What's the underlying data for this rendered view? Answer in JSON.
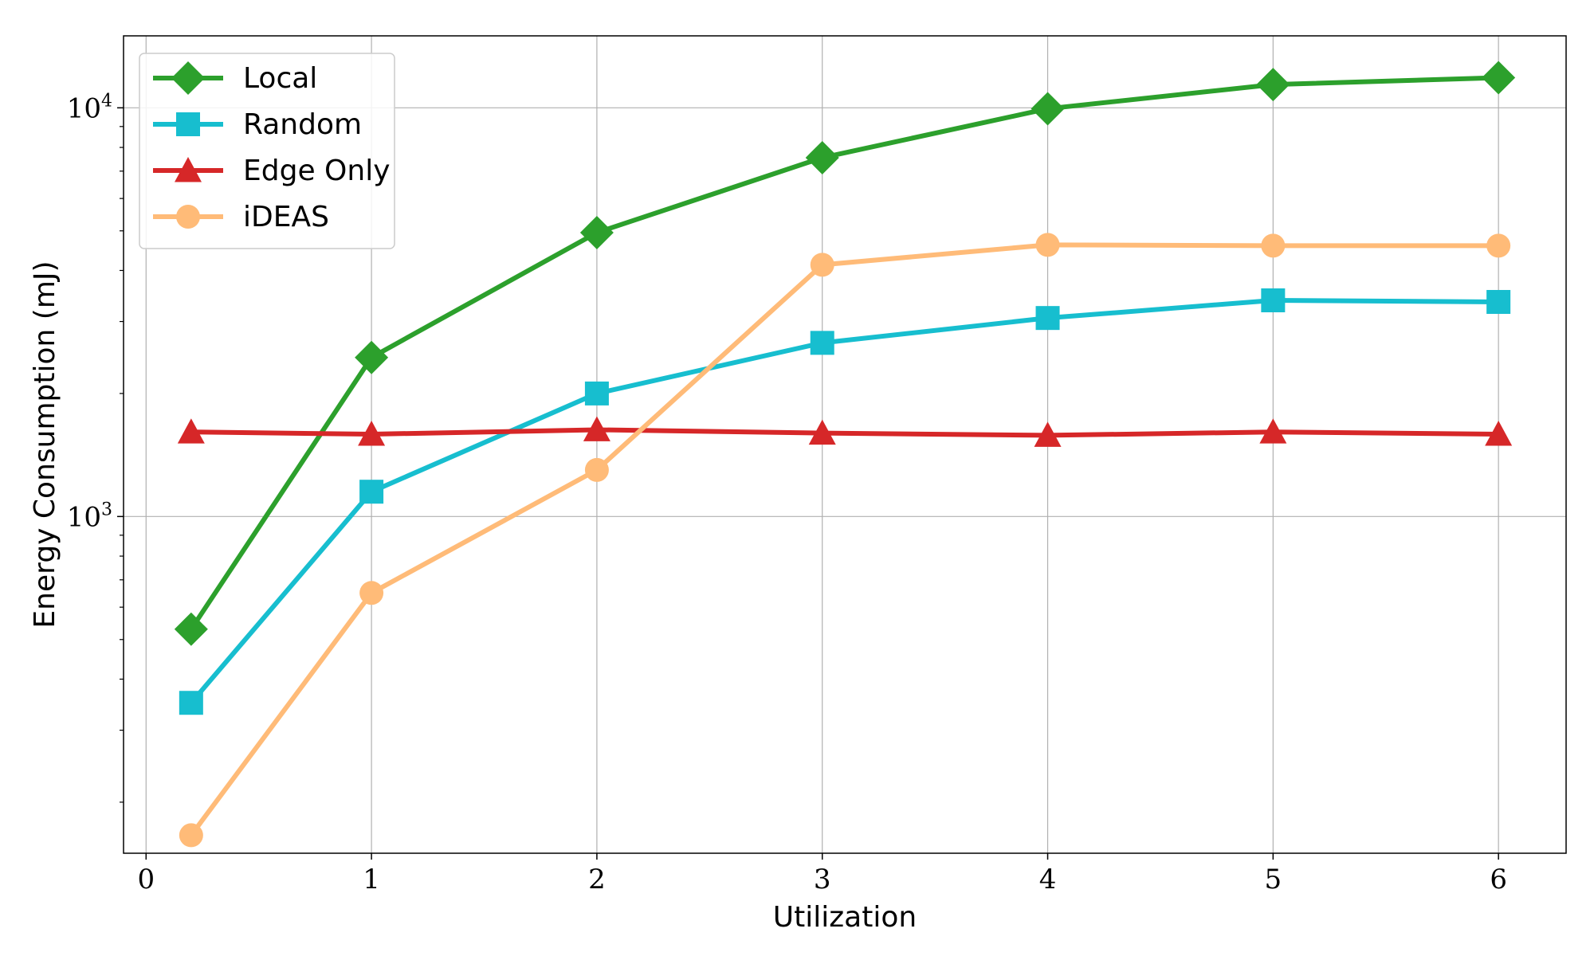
{
  "chart_data": {
    "type": "line",
    "xlabel": "Utilization",
    "ylabel": "Energy Consumption (mJ)",
    "x": [
      0.2,
      1,
      2,
      3,
      4,
      5,
      6
    ],
    "xlim": [
      -0.1,
      6.3
    ],
    "xticks": [
      0,
      1,
      2,
      3,
      4,
      5,
      6
    ],
    "yscale": "log",
    "ylim": [
      150,
      15000
    ],
    "yticks": [
      {
        "value": 1000,
        "base": "10",
        "exp": "3"
      },
      {
        "value": 10000,
        "base": "10",
        "exp": "4"
      }
    ],
    "grid": true,
    "legend_position": "top-left",
    "series": [
      {
        "name": "Local",
        "color": "#2ca02c",
        "marker": "diamond",
        "values": [
          530,
          2450,
          4950,
          7550,
          9950,
          11400,
          11850
        ]
      },
      {
        "name": "Random",
        "color": "#17becf",
        "marker": "square",
        "values": [
          350,
          1150,
          2000,
          2660,
          3060,
          3380,
          3350
        ]
      },
      {
        "name": "Edge Only",
        "color": "#d62728",
        "marker": "triangle",
        "values": [
          1610,
          1590,
          1630,
          1600,
          1580,
          1610,
          1590
        ]
      },
      {
        "name": "iDEAS",
        "color": "#ffbb78",
        "marker": "circle",
        "values": [
          166,
          650,
          1300,
          4130,
          4620,
          4600,
          4600
        ]
      }
    ]
  }
}
